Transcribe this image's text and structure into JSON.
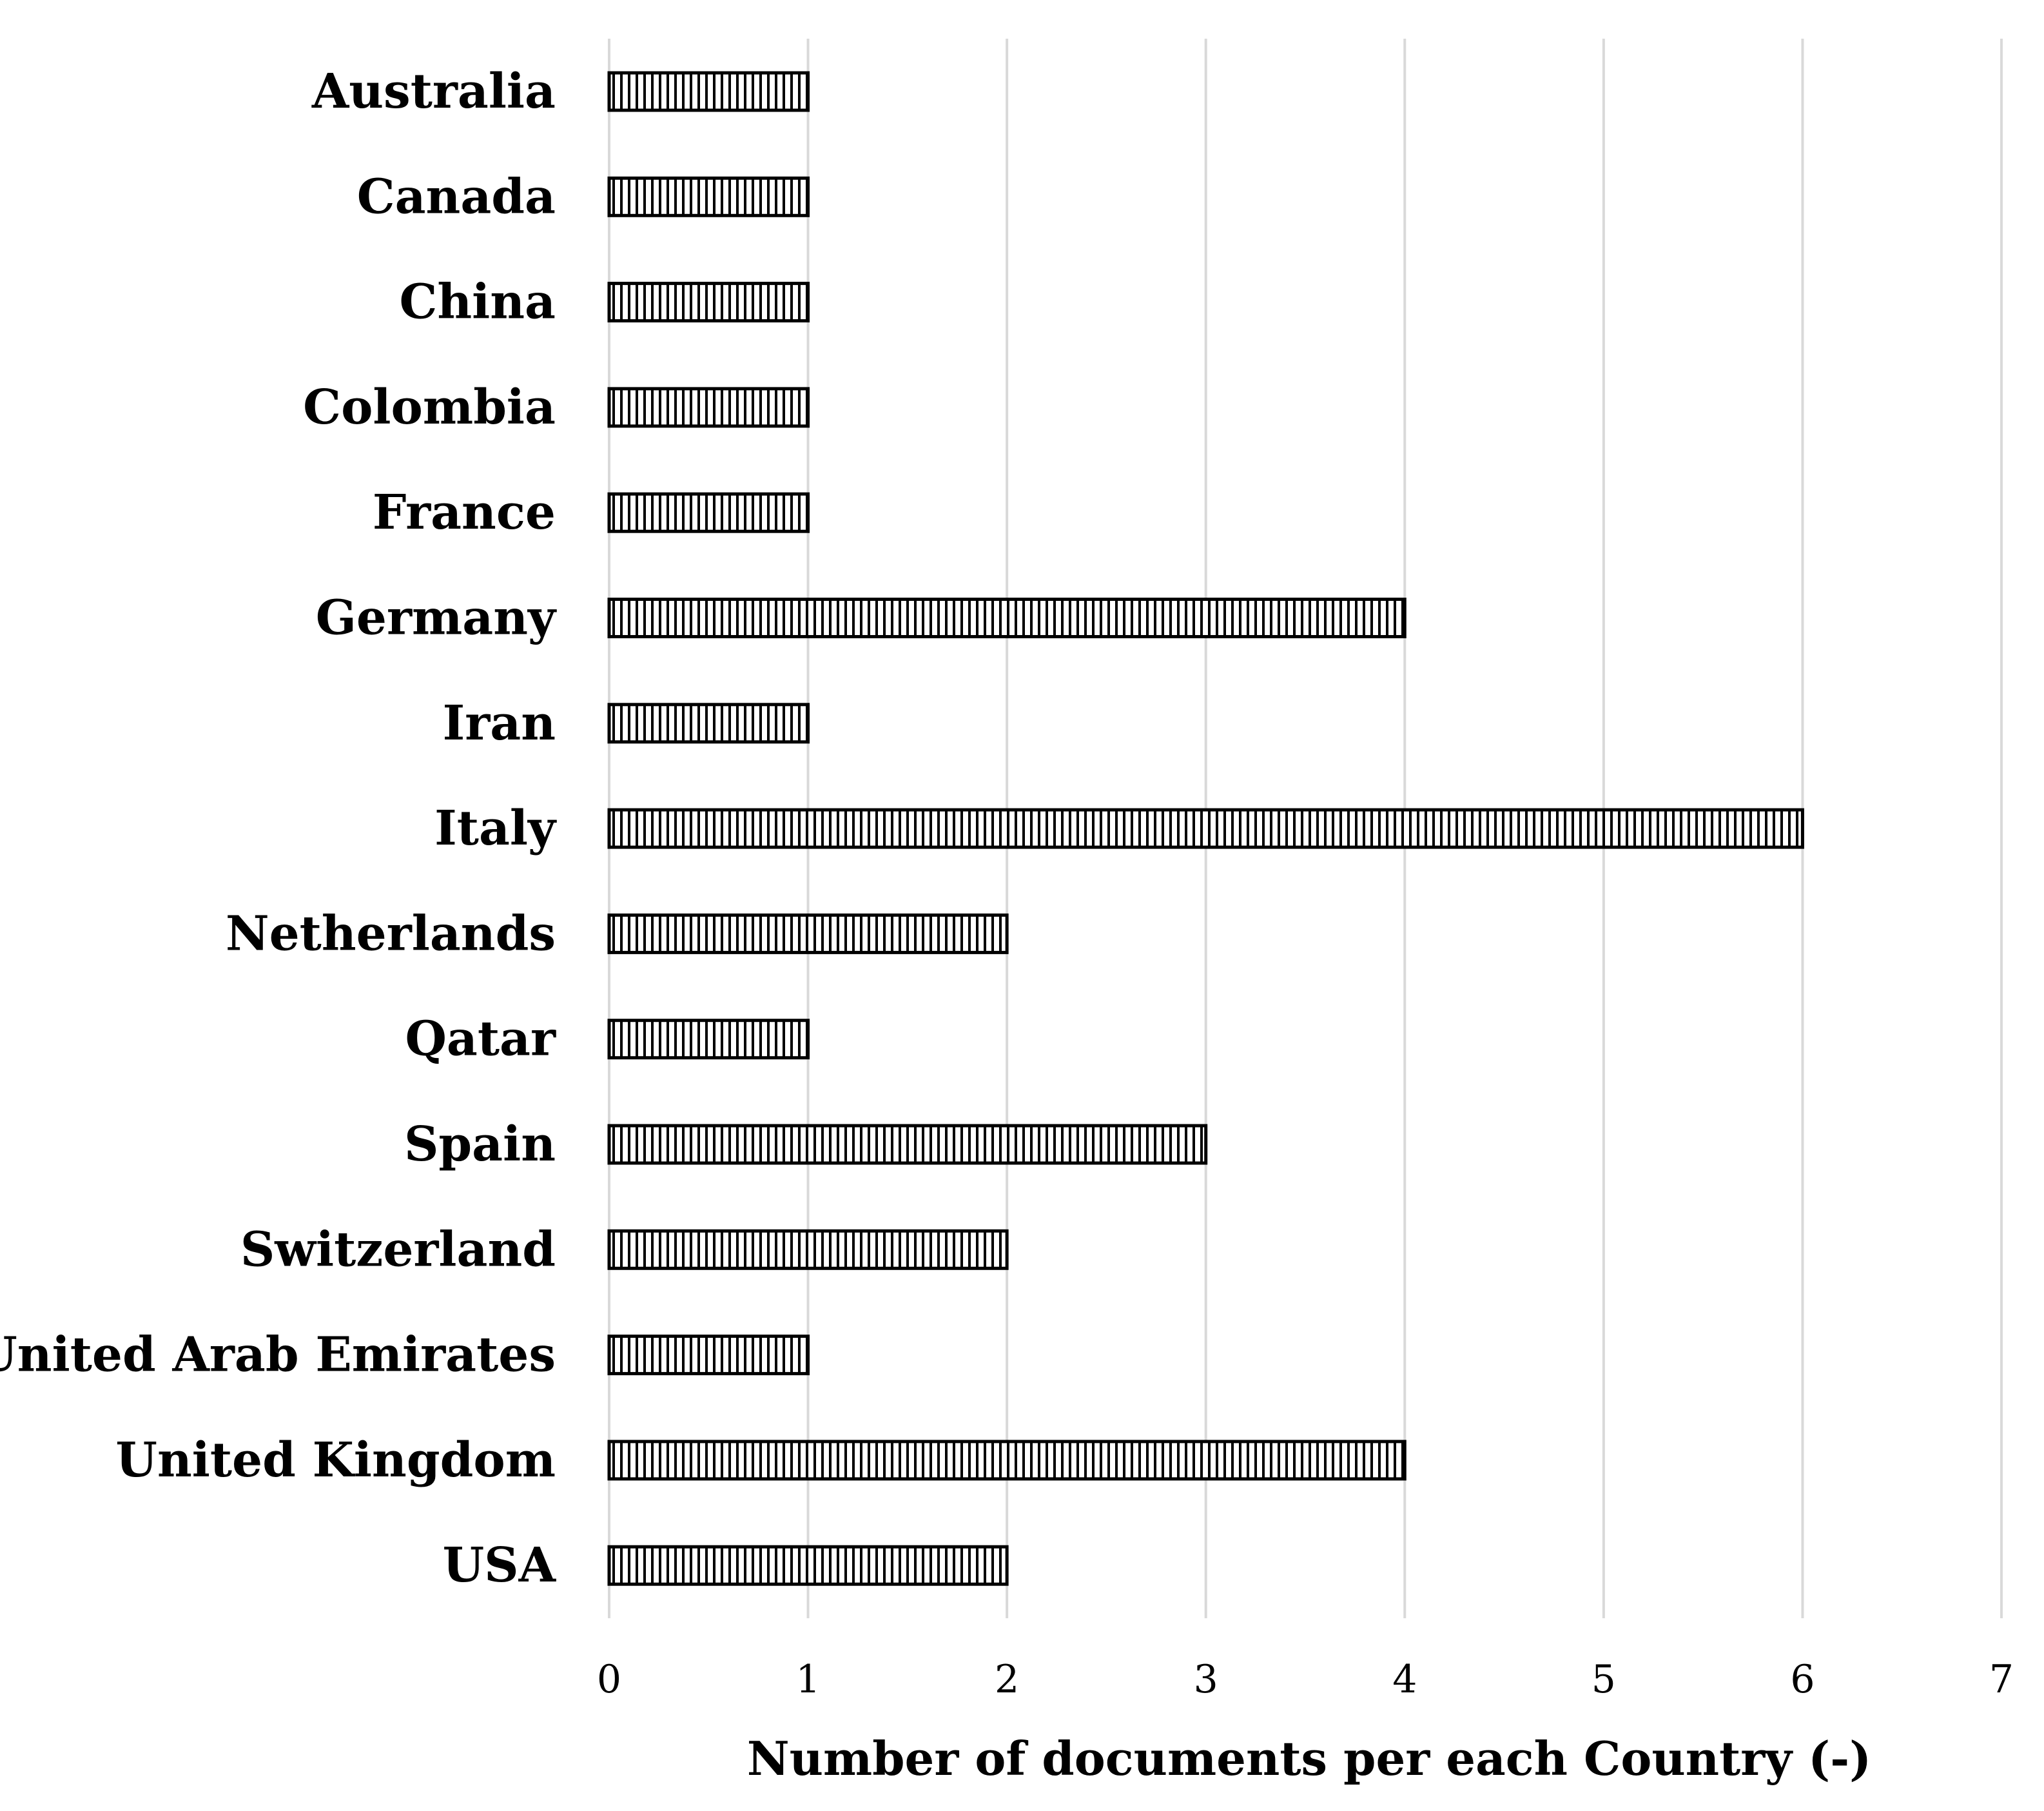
{
  "chart_data": {
    "type": "bar",
    "orientation": "horizontal",
    "categories": [
      "Australia",
      "Canada",
      "China",
      "Colombia",
      "France",
      "Germany",
      "Iran",
      "Italy",
      "Netherlands",
      "Qatar",
      "Spain",
      "Switzerland",
      "United Arab Emirates",
      "United Kingdom",
      "USA"
    ],
    "values": [
      1,
      1,
      1,
      1,
      1,
      4,
      1,
      6,
      2,
      1,
      3,
      2,
      1,
      4,
      2
    ],
    "title": "",
    "xlabel": "Number of documents per each Country (-)",
    "ylabel": "",
    "xlim": [
      0,
      7
    ],
    "xticks": [
      "0",
      "1",
      "2",
      "3",
      "4",
      "5",
      "6",
      "7"
    ],
    "grid": "vertical",
    "legend": "none",
    "bar_fill": "vertical-hatch",
    "colors": {
      "bar_stroke": "#000000",
      "bar_hatch": "#000000",
      "bar_background": "#ffffff",
      "grid": "#d9d9d9"
    }
  }
}
